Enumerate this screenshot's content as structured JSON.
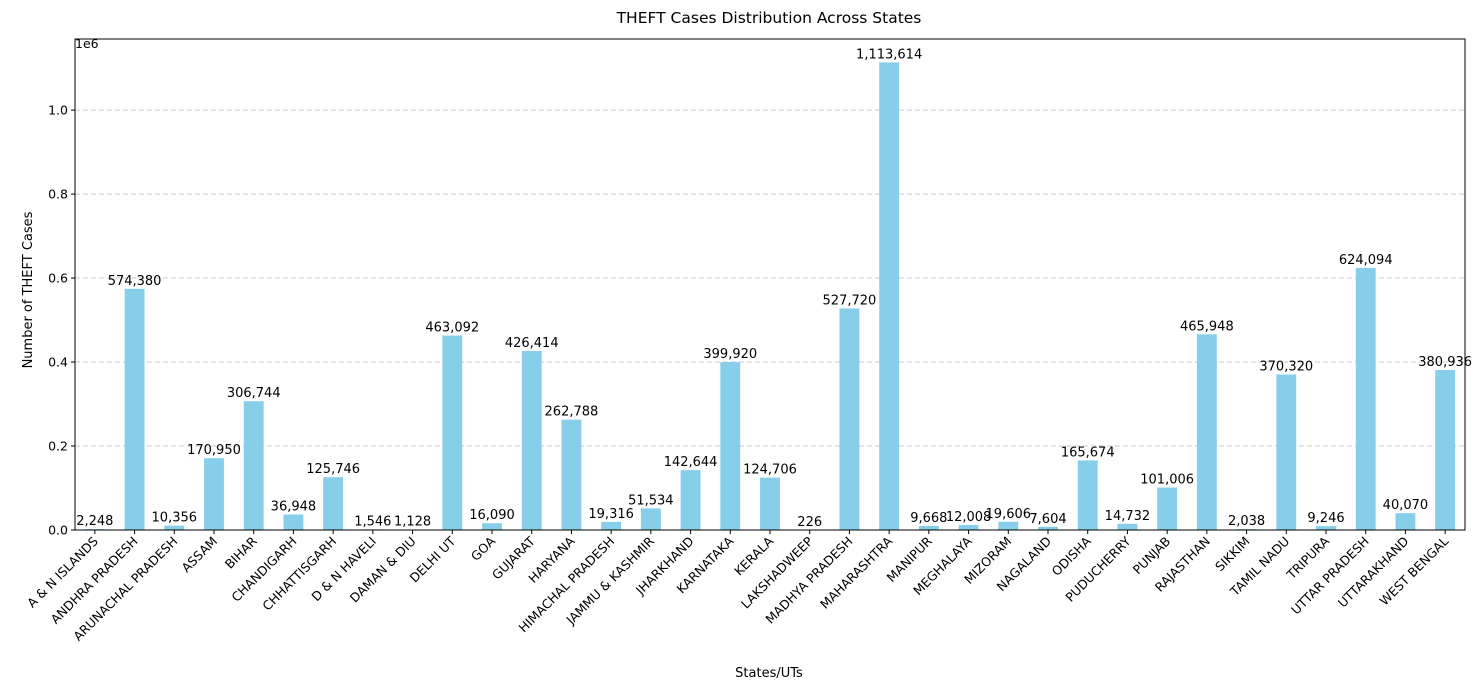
{
  "chart_data": {
    "type": "bar",
    "title": "THEFT Cases Distribution Across States",
    "xlabel": "States/UTs",
    "ylabel": "Number of THEFT Cases",
    "y_offset_label": "1e6",
    "ylim": [
      0,
      1169295
    ],
    "yticks": [
      0,
      200000,
      400000,
      600000,
      800000,
      1000000
    ],
    "ytick_labels": [
      "0.0",
      "0.2",
      "0.4",
      "0.6",
      "0.8",
      "1.0"
    ],
    "grid": "y-dashed",
    "bar_color": "#87CEEB",
    "categories": [
      "A & N ISLANDS",
      "ANDHRA PRADESH",
      "ARUNACHAL PRADESH",
      "ASSAM",
      "BIHAR",
      "CHANDIGARH",
      "CHHATTISGARH",
      "D & N HAVELI",
      "DAMAN & DIU",
      "DELHI UT",
      "GOA",
      "GUJARAT",
      "HARYANA",
      "HIMACHAL PRADESH",
      "JAMMU & KASHMIR",
      "JHARKHAND",
      "KARNATAKA",
      "KERALA",
      "LAKSHADWEEP",
      "MADHYA PRADESH",
      "MAHARASHTRA",
      "MANIPUR",
      "MEGHALAYA",
      "MIZORAM",
      "NAGALAND",
      "ODISHA",
      "PUDUCHERRY",
      "PUNJAB",
      "RAJASTHAN",
      "SIKKIM",
      "TAMIL NADU",
      "TRIPURA",
      "UTTAR PRADESH",
      "UTTARAKHAND",
      "WEST BENGAL"
    ],
    "values": [
      2248,
      574380,
      10356,
      170950,
      306744,
      36948,
      125746,
      1546,
      1128,
      463092,
      16090,
      426414,
      262788,
      19316,
      51534,
      142644,
      399920,
      124706,
      226,
      527720,
      1113614,
      9668,
      12008,
      19606,
      7604,
      165674,
      14732,
      101006,
      465948,
      2038,
      370320,
      9246,
      624094,
      40070,
      380936
    ],
    "value_labels": [
      "2,248",
      "574,380",
      "10,356",
      "170,950",
      "306,744",
      "36,948",
      "125,746",
      "1,546",
      "1,128",
      "463,092",
      "16,090",
      "426,414",
      "262,788",
      "19,316",
      "51,534",
      "142,644",
      "399,920",
      "124,706",
      "226",
      "527,720",
      "1,113,614",
      "9,668",
      "12,008",
      "19,606",
      "7,604",
      "165,674",
      "14,732",
      "101,006",
      "465,948",
      "2,038",
      "370,320",
      "9,246",
      "624,094",
      "40,070",
      "380,936"
    ]
  }
}
